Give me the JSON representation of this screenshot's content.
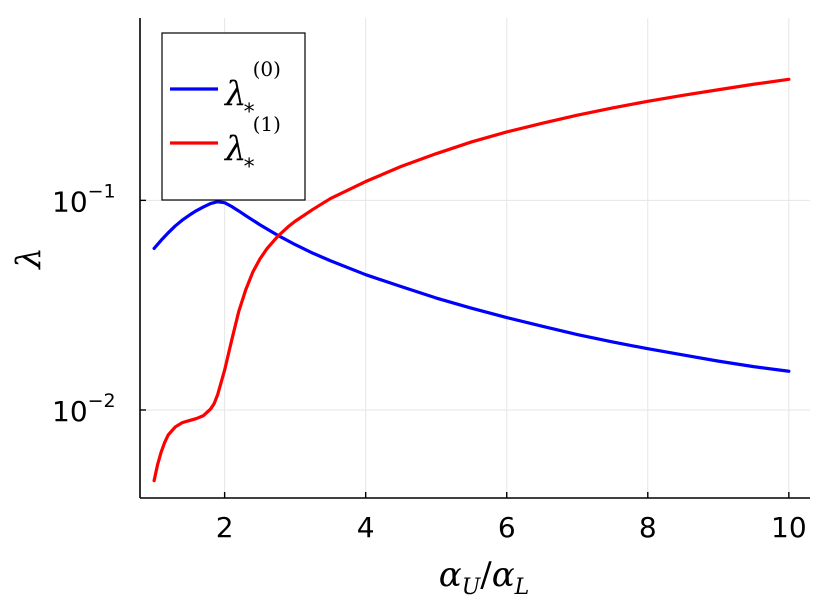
{
  "chart_data": {
    "type": "line",
    "title": "",
    "xlabel": {
      "base": "α",
      "sub1": "U",
      "slash": "/",
      "base2": "α",
      "sub2": "L"
    },
    "ylabel": "λ",
    "xlim": [
      0.8,
      10.3
    ],
    "ylim_log10": [
      -2.42,
      -0.13
    ],
    "y_scale": "log",
    "grid": true,
    "legend_position": "top-left",
    "x_ticks": [
      {
        "value": 2,
        "label": "2"
      },
      {
        "value": 4,
        "label": "4"
      },
      {
        "value": 6,
        "label": "6"
      },
      {
        "value": 8,
        "label": "8"
      },
      {
        "value": 10,
        "label": "10"
      }
    ],
    "y_ticks": [
      {
        "value": 0.01,
        "base": "10",
        "exp": "−2"
      },
      {
        "value": 0.1,
        "base": "10",
        "exp": "−1"
      }
    ],
    "series": [
      {
        "name": "λ*(0)",
        "legend": {
          "symbol": "λ",
          "sub": "*",
          "sup": "(0)"
        },
        "color": "#0000ff",
        "x": [
          1.0,
          1.1,
          1.2,
          1.3,
          1.4,
          1.5,
          1.6,
          1.7,
          1.8,
          1.9,
          2.0,
          2.1,
          2.2,
          2.3,
          2.5,
          2.7,
          2.8,
          3.0,
          3.25,
          3.5,
          4.0,
          4.5,
          5.0,
          5.5,
          6.0,
          6.5,
          7.0,
          7.5,
          8.0,
          8.5,
          9.0,
          9.5,
          10.0
        ],
        "y": [
          0.059,
          0.0645,
          0.07,
          0.0755,
          0.0805,
          0.085,
          0.0893,
          0.093,
          0.0965,
          0.0985,
          0.0975,
          0.0935,
          0.089,
          0.0845,
          0.0765,
          0.0698,
          0.0668,
          0.0615,
          0.056,
          0.0515,
          0.0442,
          0.0388,
          0.0342,
          0.0306,
          0.0276,
          0.0251,
          0.0229,
          0.0211,
          0.0196,
          0.0183,
          0.0171,
          0.0161,
          0.0153
        ]
      },
      {
        "name": "λ*(1)",
        "legend": {
          "symbol": "λ",
          "sub": "*",
          "sup": "(1)"
        },
        "color": "#ff0000",
        "x": [
          1.0,
          1.05,
          1.1,
          1.15,
          1.2,
          1.3,
          1.4,
          1.5,
          1.6,
          1.7,
          1.8,
          1.85,
          1.9,
          2.0,
          2.1,
          2.2,
          2.3,
          2.4,
          2.5,
          2.6,
          2.75,
          2.9,
          3.0,
          3.25,
          3.5,
          4.0,
          4.5,
          5.0,
          5.5,
          6.0,
          6.5,
          7.0,
          7.5,
          8.0,
          8.5,
          9.0,
          9.5,
          10.0
        ],
        "y": [
          0.0046,
          0.0055,
          0.0063,
          0.007,
          0.0076,
          0.0083,
          0.0087,
          0.0089,
          0.0091,
          0.0094,
          0.0101,
          0.0107,
          0.0118,
          0.0155,
          0.0215,
          0.0295,
          0.0375,
          0.0455,
          0.0525,
          0.0588,
          0.0672,
          0.0748,
          0.0795,
          0.0905,
          0.102,
          0.123,
          0.145,
          0.167,
          0.19,
          0.212,
          0.233,
          0.255,
          0.276,
          0.297,
          0.317,
          0.337,
          0.358,
          0.378
        ]
      }
    ]
  }
}
